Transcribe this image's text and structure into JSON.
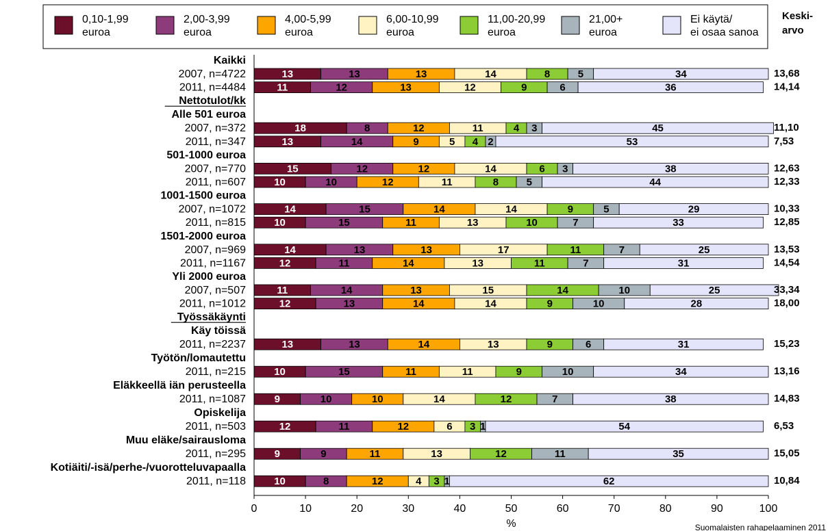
{
  "chart_data": {
    "type": "bar",
    "orientation": "horizontal",
    "stacked": true,
    "xlabel": "%",
    "xlim": [
      0,
      100
    ],
    "x_ticks": [
      "0",
      "10",
      "20",
      "30",
      "40",
      "50",
      "60",
      "70",
      "80",
      "90",
      "100"
    ],
    "legend_position": "top",
    "avg_header": "Keski-\narvo",
    "source": "Suomalaisten rahapelaaminen 2011",
    "grid": false,
    "series": [
      {
        "name": "0,10-1,99\neuroa",
        "color": "#6b0f2a",
        "label_color": "#ffffff"
      },
      {
        "name": "2,00-3,99\neuroa",
        "color": "#8e3b7c",
        "label_color": "#000000"
      },
      {
        "name": "4,00-5,99\neuroa",
        "color": "#ffa500",
        "label_color": "#000000"
      },
      {
        "name": "6,00-10,99\neuroa",
        "color": "#fff3c4",
        "label_color": "#000000"
      },
      {
        "name": "11,00-20,99\neuroa",
        "color": "#8ccc35",
        "label_color": "#000000"
      },
      {
        "name": "21,00+\neuroa",
        "color": "#a8b4bc",
        "label_color": "#000000"
      },
      {
        "name": "Ei käytä/\nei osaa sanoa",
        "color": "#e4e4fb",
        "label_color": "#000000"
      }
    ],
    "rows": [
      {
        "kind": "group",
        "label": "Kaikki"
      },
      {
        "kind": "bar",
        "label": "2007, n=4722",
        "values": [
          13,
          13,
          13,
          14,
          8,
          5,
          34
        ],
        "avg": "13,68"
      },
      {
        "kind": "bar",
        "label": "2011, n=4484",
        "values": [
          11,
          12,
          13,
          12,
          9,
          6,
          36
        ],
        "avg": "14,14"
      },
      {
        "kind": "section",
        "label": "Nettotulot/kk"
      },
      {
        "kind": "group",
        "label": "Alle 501 euroa"
      },
      {
        "kind": "bar",
        "label": "2007, n=372",
        "values": [
          18,
          8,
          12,
          11,
          4,
          3,
          45
        ],
        "avg": "11,10"
      },
      {
        "kind": "bar",
        "label": "2011, n=347",
        "values": [
          13,
          14,
          9,
          5,
          4,
          2,
          53
        ],
        "avg": "7,53"
      },
      {
        "kind": "group",
        "label": "501-1000 euroa"
      },
      {
        "kind": "bar",
        "label": "2007, n=770",
        "values": [
          15,
          12,
          12,
          14,
          6,
          3,
          38
        ],
        "avg": "12,63"
      },
      {
        "kind": "bar",
        "label": "2011, n=607",
        "values": [
          10,
          10,
          12,
          11,
          8,
          5,
          44
        ],
        "avg": "12,33"
      },
      {
        "kind": "group",
        "label": "1001-1500 euroa"
      },
      {
        "kind": "bar",
        "label": "2007, n=1072",
        "values": [
          14,
          15,
          14,
          14,
          9,
          5,
          29
        ],
        "avg": "10,33"
      },
      {
        "kind": "bar",
        "label": "2011, n=815",
        "values": [
          10,
          15,
          11,
          13,
          10,
          7,
          33
        ],
        "avg": "12,85"
      },
      {
        "kind": "group",
        "label": "1501-2000 euroa"
      },
      {
        "kind": "bar",
        "label": "2007, n=969",
        "values": [
          14,
          13,
          13,
          17,
          11,
          7,
          25
        ],
        "avg": "13,53"
      },
      {
        "kind": "bar",
        "label": "2011, n=1167",
        "values": [
          12,
          11,
          14,
          13,
          11,
          7,
          31
        ],
        "avg": "14,54"
      },
      {
        "kind": "group",
        "label": "Yli 2000 euroa"
      },
      {
        "kind": "bar",
        "label": "2007, n=507",
        "values": [
          11,
          14,
          13,
          15,
          14,
          10,
          25
        ],
        "avg": "33,34"
      },
      {
        "kind": "bar",
        "label": "2011, n=1012",
        "values": [
          12,
          13,
          14,
          14,
          9,
          10,
          28
        ],
        "avg": "18,00"
      },
      {
        "kind": "section",
        "label": "Työssäkäynti"
      },
      {
        "kind": "group",
        "label": "Käy töissä"
      },
      {
        "kind": "bar",
        "label": "2011, n=2237",
        "values": [
          13,
          13,
          14,
          13,
          9,
          6,
          31
        ],
        "avg": "15,23"
      },
      {
        "kind": "group",
        "label": "Työtön/lomautettu"
      },
      {
        "kind": "bar",
        "label": "2011, n=215",
        "values": [
          10,
          15,
          11,
          11,
          9,
          10,
          34
        ],
        "avg": "13,16"
      },
      {
        "kind": "group",
        "label": "Eläkkeellä iän perusteella"
      },
      {
        "kind": "bar",
        "label": "2011, n=1087",
        "values": [
          9,
          10,
          10,
          14,
          12,
          7,
          38
        ],
        "avg": "14,83"
      },
      {
        "kind": "group",
        "label": "Opiskelija"
      },
      {
        "kind": "bar",
        "label": "2011, n=503",
        "values": [
          12,
          11,
          12,
          6,
          3,
          1,
          54
        ],
        "avg": "6,53"
      },
      {
        "kind": "group",
        "label": "Muu eläke/sairausloma"
      },
      {
        "kind": "bar",
        "label": "2011, n=295",
        "values": [
          9,
          9,
          11,
          13,
          12,
          11,
          35
        ],
        "avg": "15,05"
      },
      {
        "kind": "group",
        "label": "Kotiäiti/-isä/perhe-/vuorotteluvapaalla"
      },
      {
        "kind": "bar",
        "label": "2011, n=118",
        "values": [
          10,
          8,
          12,
          4,
          3,
          1,
          62
        ],
        "avg": "10,84"
      }
    ]
  }
}
